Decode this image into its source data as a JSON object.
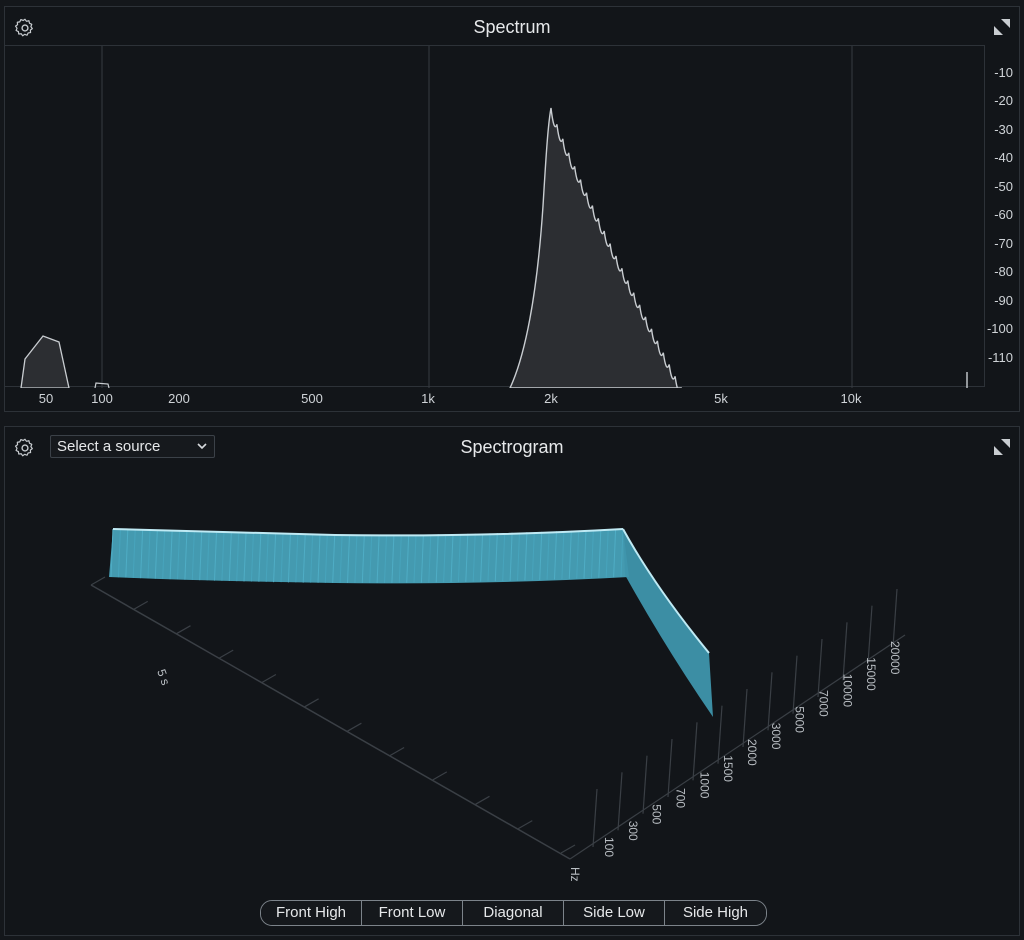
{
  "spectrum": {
    "title": "Spectrum",
    "settings_icon": "gear-icon",
    "expand_icon": "expand-icon",
    "y_ticks": [
      "-10",
      "-20",
      "-30",
      "-40",
      "-50",
      "-60",
      "-70",
      "-80",
      "-90",
      "-100",
      "-110"
    ],
    "x_ticks": [
      "50",
      "100",
      "200",
      "500",
      "1k",
      "2k",
      "5k",
      "10k"
    ],
    "line_color": "#c9cdd1",
    "fill_color": "#2c2e32"
  },
  "spectrogram": {
    "title": "Spectrogram",
    "settings_icon": "gear-icon",
    "expand_icon": "expand-icon",
    "source_select": {
      "value": "Select a source",
      "icon": "chevron-down-icon"
    },
    "time_label": "5 s",
    "freq_unit": "Hz",
    "freq_ticks": [
      "100",
      "300",
      "500",
      "700",
      "1000",
      "1500",
      "2000",
      "3000",
      "5000",
      "7000",
      "10000",
      "15000",
      "20000"
    ],
    "waterfall_color": "#5fc6dd",
    "view_buttons": [
      "Front High",
      "Front Low",
      "Diagonal",
      "Side Low",
      "Side High"
    ]
  }
}
